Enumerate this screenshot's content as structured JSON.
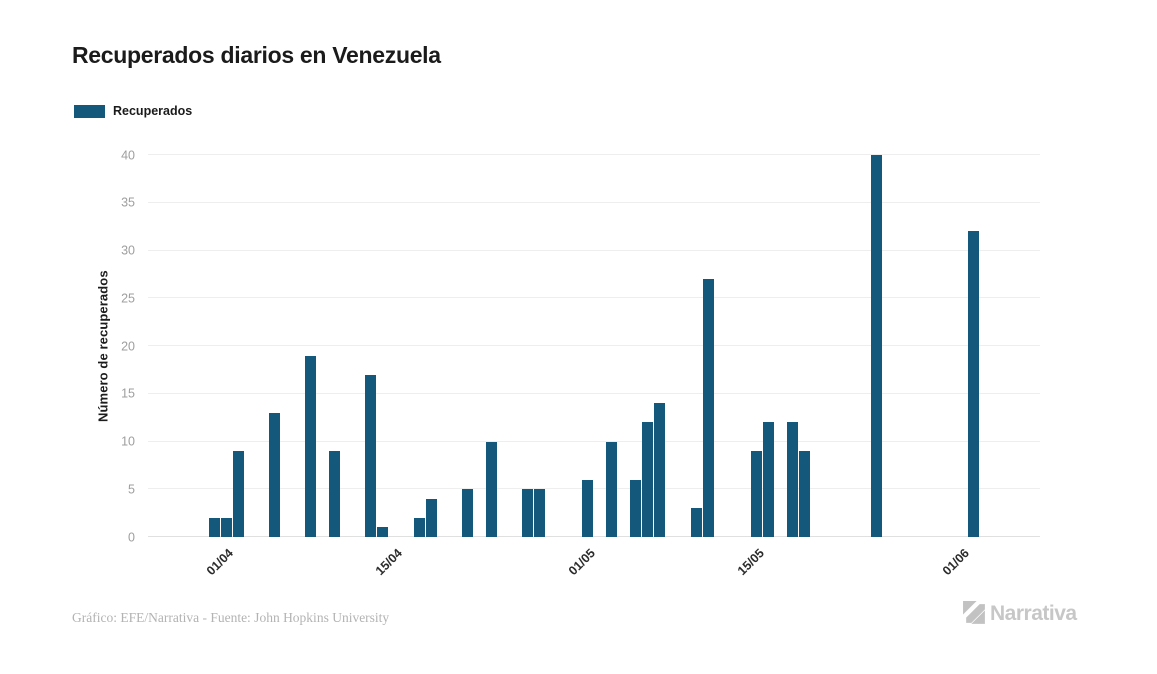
{
  "header": {
    "title": "Recuperados diarios en Venezuela"
  },
  "legend": {
    "label": "Recuperados"
  },
  "chart_data": {
    "type": "bar",
    "title": "Recuperados diarios en Venezuela",
    "xlabel": "",
    "ylabel": "Número de recuperados",
    "series_name": "Recuperados",
    "ylim": [
      0,
      40
    ],
    "yticks": [
      0,
      5,
      10,
      15,
      20,
      25,
      30,
      35,
      40
    ],
    "grid": "horizontal",
    "legend_position": "top-left",
    "bar_color": "#14587b",
    "xtick_labels": [
      "01/04",
      "15/04",
      "01/05",
      "15/05",
      "01/06"
    ],
    "xtick_indices": [
      6,
      20,
      36,
      50,
      67
    ],
    "dates": [
      "26/03",
      "27/03",
      "28/03",
      "29/03",
      "30/03",
      "31/03",
      "01/04",
      "02/04",
      "03/04",
      "04/04",
      "05/04",
      "06/04",
      "07/04",
      "08/04",
      "09/04",
      "10/04",
      "11/04",
      "12/04",
      "13/04",
      "14/04",
      "15/04",
      "16/04",
      "17/04",
      "18/04",
      "19/04",
      "20/04",
      "21/04",
      "22/04",
      "23/04",
      "24/04",
      "25/04",
      "26/04",
      "27/04",
      "28/04",
      "29/04",
      "30/04",
      "01/05",
      "02/05",
      "03/05",
      "04/05",
      "05/05",
      "06/05",
      "07/05",
      "08/05",
      "09/05",
      "10/05",
      "11/05",
      "12/05",
      "13/05",
      "14/05",
      "15/05",
      "16/05",
      "17/05",
      "18/05",
      "19/05",
      "20/05",
      "21/05",
      "22/05",
      "23/05",
      "24/05",
      "25/05",
      "26/05",
      "27/05",
      "28/05",
      "29/05",
      "30/05",
      "31/05",
      "01/06",
      "02/06",
      "03/06",
      "04/06",
      "05/06",
      "06/06",
      "07/06"
    ],
    "values": [
      0,
      0,
      0,
      0,
      0,
      2,
      2,
      9,
      0,
      0,
      13,
      0,
      0,
      19,
      0,
      9,
      0,
      0,
      17,
      1,
      0,
      0,
      2,
      4,
      0,
      0,
      5,
      0,
      10,
      0,
      0,
      5,
      5,
      0,
      0,
      0,
      6,
      0,
      10,
      0,
      6,
      12,
      14,
      0,
      0,
      3,
      27,
      0,
      0,
      0,
      9,
      12,
      0,
      12,
      9,
      0,
      0,
      0,
      0,
      0,
      40,
      0,
      0,
      0,
      0,
      0,
      0,
      0,
      32,
      0,
      0,
      0,
      0,
      0
    ]
  },
  "footer": {
    "credit": "Gráfico: EFE/Narrativa - Fuente: John Hopkins University"
  },
  "logo": {
    "text": "Narrativa"
  },
  "colors": {
    "bar": "#14587b",
    "gridline": "#eeeeee",
    "axis_line": "#e0e0e0",
    "y_tick_text": "#9e9e9e",
    "x_tick_text": "#2b2b2b",
    "title_text": "#1b1b1b",
    "footer_text": "#b3b3b3",
    "logo_gray": "#c7c7c7"
  }
}
